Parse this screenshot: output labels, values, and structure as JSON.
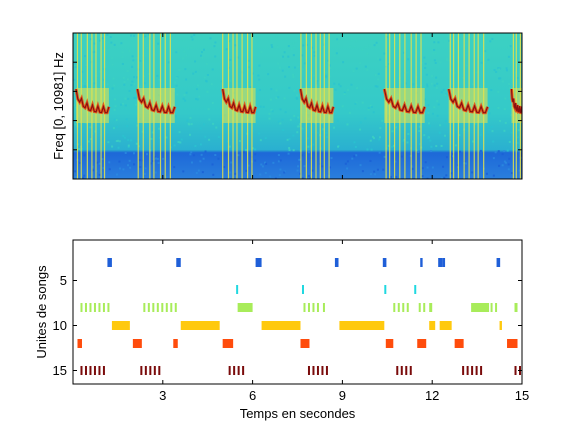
{
  "spectrogram": {
    "ylabel": "Freq [0, 10981] Hz",
    "colors": {
      "noise": "#3cd1c2",
      "noise2": "#2ac3d0",
      "low": "#1a5fd6",
      "low2": "#2a8be0",
      "warm": "#e8e34a",
      "hot": "#e05a1e",
      "core": "#8b1010"
    },
    "song_onsets_s": [
      0.1,
      2.15,
      5.0,
      7.6,
      10.4,
      12.55,
      14.65
    ],
    "song_durations_s": [
      1.1,
      1.25,
      1.1,
      1.1,
      1.35,
      1.3,
      0.4
    ]
  },
  "chart_data": {
    "type": "scatter",
    "xlabel": "Temps en secondes",
    "ylabel": "Unites de songs",
    "xlim": [
      0,
      15
    ],
    "ylim": [
      16.5,
      0.5
    ],
    "xticks": [
      3,
      6,
      9,
      12,
      15
    ],
    "yticks": [
      5,
      10,
      15
    ],
    "series": [
      {
        "unit": 3,
        "color": "#1f5fd8",
        "segments": [
          [
            1.15,
            0.15
          ],
          [
            3.45,
            0.15
          ],
          [
            6.1,
            0.2
          ],
          [
            8.75,
            0.12
          ],
          [
            10.35,
            0.12
          ],
          [
            11.6,
            0.08
          ],
          [
            12.2,
            0.15
          ],
          [
            12.35,
            0.08
          ],
          [
            14.15,
            0.12
          ]
        ]
      },
      {
        "unit": 6,
        "color": "#20d8e0",
        "segments": [
          [
            5.45,
            0.05
          ],
          [
            7.65,
            0.05
          ],
          [
            10.4,
            0.06
          ],
          [
            11.4,
            0.06
          ]
        ]
      },
      {
        "unit": 8,
        "color": "#a8ec5a",
        "segments": [
          [
            0.25,
            0.05
          ],
          [
            0.4,
            0.05
          ],
          [
            0.55,
            0.05
          ],
          [
            0.7,
            0.05
          ],
          [
            0.85,
            0.05
          ],
          [
            1.0,
            0.05
          ],
          [
            1.15,
            0.05
          ],
          [
            2.35,
            0.05
          ],
          [
            2.5,
            0.05
          ],
          [
            2.65,
            0.05
          ],
          [
            2.8,
            0.05
          ],
          [
            2.95,
            0.05
          ],
          [
            3.1,
            0.05
          ],
          [
            3.25,
            0.05
          ],
          [
            3.4,
            0.05
          ],
          [
            5.5,
            0.5
          ],
          [
            7.7,
            0.05
          ],
          [
            7.85,
            0.05
          ],
          [
            8.0,
            0.05
          ],
          [
            8.15,
            0.05
          ],
          [
            8.35,
            0.05
          ],
          [
            10.7,
            0.05
          ],
          [
            10.85,
            0.05
          ],
          [
            11.0,
            0.05
          ],
          [
            11.15,
            0.05
          ],
          [
            11.55,
            0.05
          ],
          [
            11.7,
            0.05
          ],
          [
            11.9,
            0.1
          ],
          [
            13.3,
            0.6
          ],
          [
            13.95,
            0.05
          ],
          [
            14.1,
            0.05
          ],
          [
            14.75,
            0.1
          ]
        ]
      },
      {
        "unit": 10,
        "color": "#ffc90e",
        "segments": [
          [
            1.3,
            0.6
          ],
          [
            3.6,
            1.3
          ],
          [
            6.3,
            1.3
          ],
          [
            8.9,
            1.5
          ],
          [
            11.9,
            0.2
          ],
          [
            12.25,
            0.4
          ],
          [
            14.25,
            0.08
          ]
        ]
      },
      {
        "unit": 12,
        "color": "#ff4c0c",
        "segments": [
          [
            0.15,
            0.15
          ],
          [
            2.0,
            0.3
          ],
          [
            3.35,
            0.15
          ],
          [
            5.0,
            0.35
          ],
          [
            7.6,
            0.3
          ],
          [
            10.45,
            0.25
          ],
          [
            11.5,
            0.3
          ],
          [
            12.75,
            0.3
          ],
          [
            14.5,
            0.35
          ]
        ]
      },
      {
        "unit": 15,
        "color": "#7a0b0b",
        "segments": [
          [
            0.25,
            0.05
          ],
          [
            0.4,
            0.05
          ],
          [
            0.55,
            0.05
          ],
          [
            0.7,
            0.05
          ],
          [
            0.85,
            0.05
          ],
          [
            1.0,
            0.05
          ],
          [
            2.25,
            0.05
          ],
          [
            2.4,
            0.05
          ],
          [
            2.55,
            0.05
          ],
          [
            2.7,
            0.05
          ],
          [
            2.85,
            0.05
          ],
          [
            5.2,
            0.05
          ],
          [
            5.35,
            0.05
          ],
          [
            5.5,
            0.05
          ],
          [
            5.65,
            0.05
          ],
          [
            7.85,
            0.05
          ],
          [
            8.0,
            0.05
          ],
          [
            8.15,
            0.05
          ],
          [
            8.3,
            0.05
          ],
          [
            8.45,
            0.05
          ],
          [
            10.8,
            0.05
          ],
          [
            10.95,
            0.05
          ],
          [
            11.1,
            0.05
          ],
          [
            11.25,
            0.05
          ],
          [
            13.0,
            0.05
          ],
          [
            13.15,
            0.05
          ],
          [
            13.3,
            0.05
          ],
          [
            13.45,
            0.05
          ],
          [
            13.6,
            0.05
          ],
          [
            14.75,
            0.05
          ],
          [
            14.9,
            0.05
          ]
        ]
      }
    ]
  }
}
